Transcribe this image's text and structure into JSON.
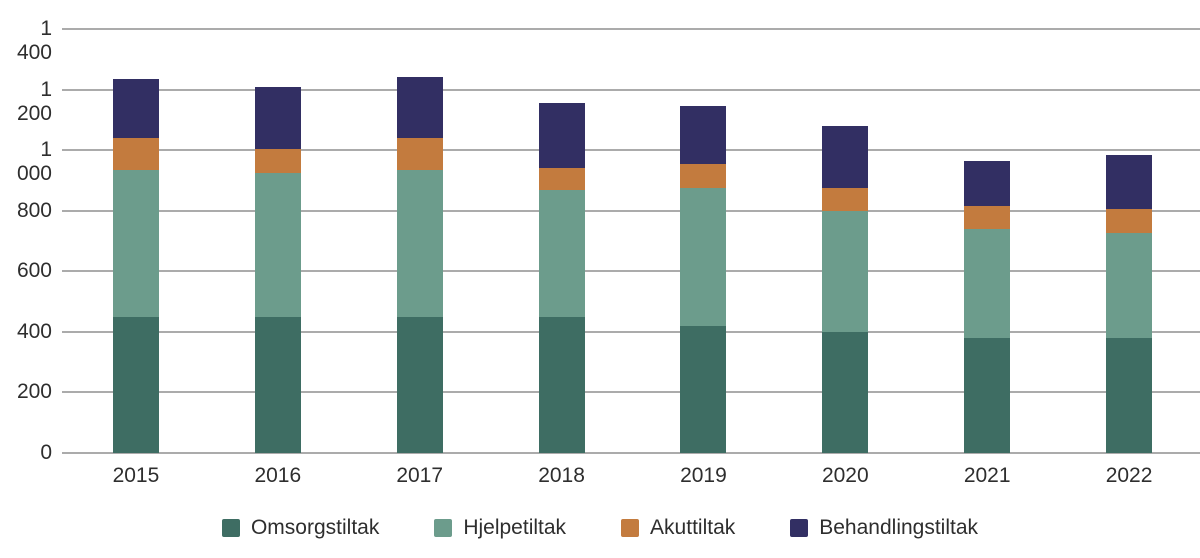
{
  "chart_data": {
    "type": "bar",
    "stacked": true,
    "title": "",
    "xlabel": "",
    "ylabel": "",
    "categories": [
      "2015",
      "2016",
      "2017",
      "2018",
      "2019",
      "2020",
      "2021",
      "2022"
    ],
    "series": [
      {
        "name": "Omsorgstiltak",
        "color": "#3e6d63",
        "values": [
          450,
          450,
          450,
          450,
          420,
          400,
          380,
          380
        ]
      },
      {
        "name": "Hjelpetiltak",
        "color": "#6c9c8c",
        "values": [
          485,
          475,
          485,
          420,
          455,
          400,
          360,
          345
        ]
      },
      {
        "name": "Akuttiltak",
        "color": "#c37b3e",
        "values": [
          105,
          80,
          105,
          70,
          80,
          75,
          75,
          80
        ]
      },
      {
        "name": "Behandlingstiltak",
        "color": "#322f63",
        "values": [
          195,
          205,
          200,
          215,
          190,
          205,
          150,
          180
        ]
      }
    ],
    "totals": [
      1235,
      1210,
      1240,
      1155,
      1145,
      1080,
      965,
      985
    ],
    "ylim": [
      0,
      1400
    ],
    "tick_values": [
      0,
      200,
      400,
      600,
      800,
      1000,
      1200,
      1400
    ],
    "tick_labels": [
      "0",
      "200",
      "400",
      "600",
      "800",
      "1 000",
      "1 200",
      "1 400"
    ],
    "grid": true,
    "legend_position": "bottom"
  },
  "colors": {
    "background": "#ffffff",
    "gridline": "#ababab",
    "text": "#2e2e2e"
  }
}
